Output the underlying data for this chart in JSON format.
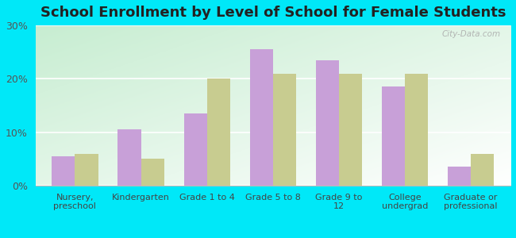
{
  "title": "School Enrollment by Level of School for Female Students",
  "categories": [
    "Nursery,\npreschool",
    "Kindergarten",
    "Grade 1 to 4",
    "Grade 5 to 8",
    "Grade 9 to\n12",
    "College\nundergrad",
    "Graduate or\nprofessional"
  ],
  "troy": [
    5.5,
    10.5,
    13.5,
    25.5,
    23.5,
    18.5,
    3.5
  ],
  "missouri": [
    6.0,
    5.0,
    20.0,
    21.0,
    21.0,
    21.0,
    6.0
  ],
  "troy_color": "#c8a0d8",
  "missouri_color": "#c8cc90",
  "bg_color": "#00e8f8",
  "plot_bg_grad_start": "#c8ecd0",
  "plot_bg_grad_end": "#f0faf8",
  "ylim": [
    0,
    30
  ],
  "yticks": [
    0,
    10,
    20,
    30
  ],
  "ytick_labels": [
    "0%",
    "10%",
    "20%",
    "30%"
  ],
  "title_fontsize": 13,
  "watermark": "City-Data.com",
  "bar_width": 0.35
}
